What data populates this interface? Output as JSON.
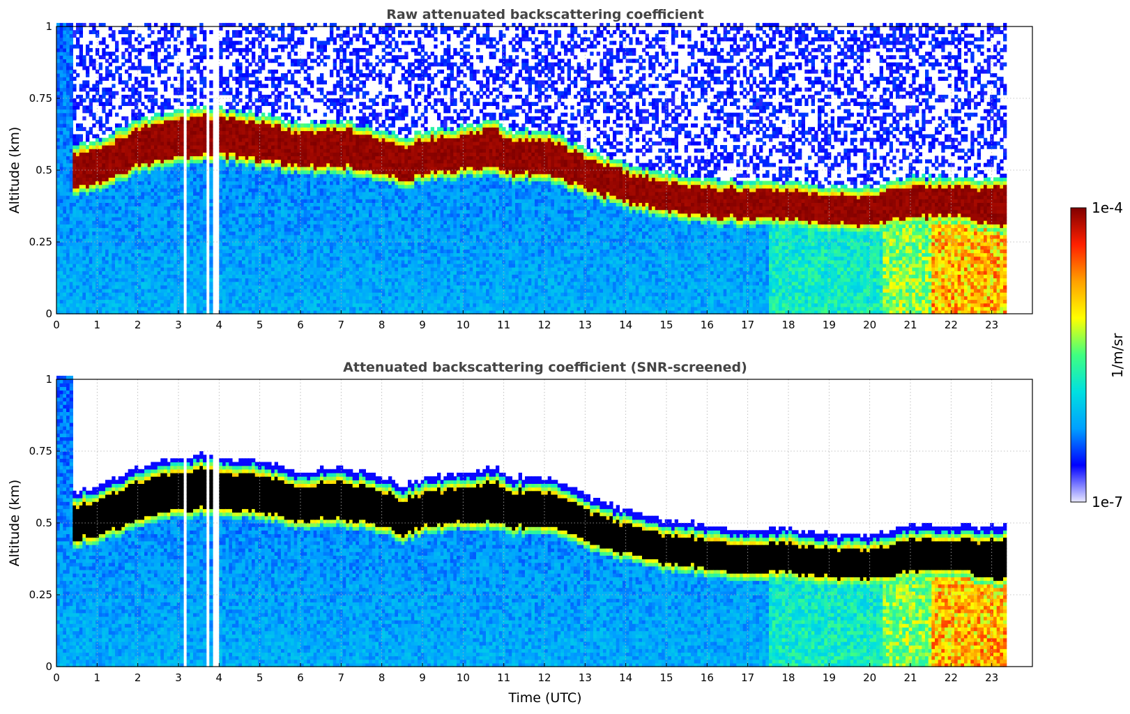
{
  "chart_data": [
    {
      "type": "heatmap",
      "title": "Raw attenuated backscattering coefficient",
      "xlabel": "",
      "ylabel": "Altitude (km)",
      "xlim": [
        0,
        24
      ],
      "ylim": [
        0,
        1
      ],
      "x_ticks": [
        "0",
        "1",
        "2",
        "3",
        "4",
        "5",
        "6",
        "7",
        "8",
        "9",
        "10",
        "11",
        "12",
        "13",
        "14",
        "15",
        "16",
        "17",
        "18",
        "19",
        "20",
        "21",
        "22",
        "23"
      ],
      "y_ticks": [
        "0",
        "0.25",
        "0.5",
        "0.75",
        "1"
      ],
      "grid": true,
      "data_end_hour": 23.3,
      "gaps_hours": [
        3.1,
        3.65,
        3.82,
        3.95
      ],
      "noise": "high-altitude noise above layer",
      "cloud_layer": {
        "time_hours": [
          0.4,
          1,
          2,
          3,
          3.5,
          4,
          5,
          6,
          7,
          8,
          8.5,
          9,
          10,
          10.8,
          11,
          12,
          13,
          14,
          15,
          16,
          17,
          18,
          19,
          20,
          21,
          22,
          23.3
        ],
        "center_km": [
          0.5,
          0.52,
          0.58,
          0.61,
          0.62,
          0.62,
          0.6,
          0.57,
          0.58,
          0.55,
          0.52,
          0.55,
          0.56,
          0.58,
          0.55,
          0.55,
          0.49,
          0.44,
          0.41,
          0.39,
          0.38,
          0.38,
          0.36,
          0.36,
          0.39,
          0.39,
          0.37
        ],
        "thickness_km": [
          0.12,
          0.12,
          0.13,
          0.13,
          0.14,
          0.13,
          0.13,
          0.12,
          0.13,
          0.12,
          0.12,
          0.12,
          0.12,
          0.14,
          0.12,
          0.12,
          0.11,
          0.1,
          0.1,
          0.1,
          0.1,
          0.1,
          0.1,
          0.1,
          0.11,
          0.1,
          0.14
        ]
      }
    },
    {
      "type": "heatmap",
      "title": "Attenuated backscattering coefficient (SNR-screened)",
      "xlabel": "Time (UTC)",
      "ylabel": "Altitude (km)",
      "xlim": [
        0,
        24
      ],
      "ylim": [
        0,
        1
      ],
      "x_ticks": [
        "0",
        "1",
        "2",
        "3",
        "4",
        "5",
        "6",
        "7",
        "8",
        "9",
        "10",
        "11",
        "12",
        "13",
        "14",
        "15",
        "16",
        "17",
        "18",
        "19",
        "20",
        "21",
        "22",
        "23"
      ],
      "y_ticks": [
        "0",
        "0.25",
        "0.5",
        "0.75",
        "1"
      ],
      "grid": true,
      "data_end_hour": 23.3,
      "noise": "screened (removed)"
    }
  ],
  "colorbar": {
    "label": "1/m/sr",
    "max_label": "1e-4",
    "min_label": "1e-7",
    "scale": "log",
    "range": [
      1e-07,
      0.0001
    ],
    "colors": [
      "#e8e8ff",
      "#0000ff",
      "#00a0ff",
      "#00e0e0",
      "#40ff80",
      "#ffff00",
      "#ffa000",
      "#ff2000",
      "#800000"
    ]
  }
}
